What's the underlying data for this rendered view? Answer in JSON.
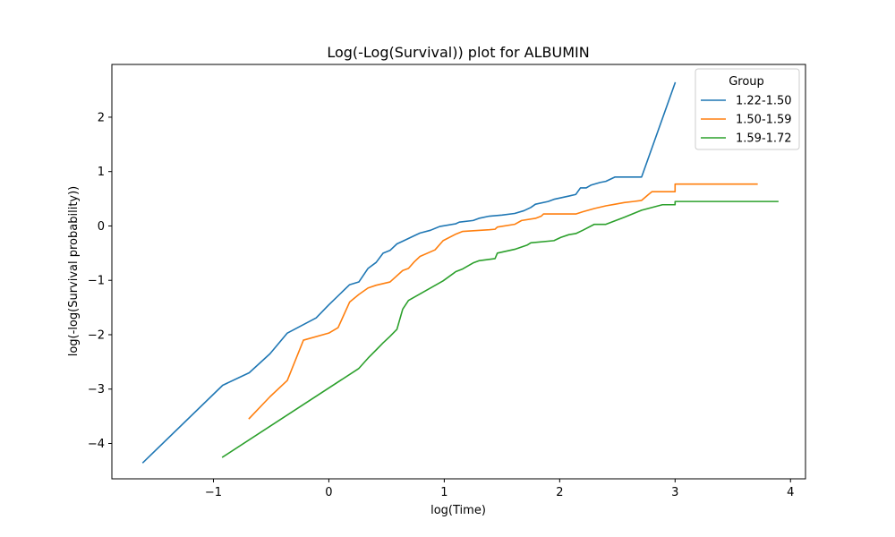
{
  "chart_data": {
    "type": "line",
    "title": "Log(-Log(Survival)) plot for ALBUMIN",
    "xlabel": "log(Time)",
    "ylabel": "log(-log(Survival probability))",
    "xlim": [
      -1.88,
      4.13
    ],
    "ylim": [
      -4.65,
      2.97
    ],
    "xticks": [
      -1,
      0,
      1,
      2,
      3,
      4
    ],
    "yticks": [
      -4,
      -3,
      -2,
      -1,
      0,
      1,
      2
    ],
    "xtick_labels": [
      "−1",
      "0",
      "1",
      "2",
      "3",
      "4"
    ],
    "ytick_labels": [
      "−4",
      "−3",
      "−2",
      "−1",
      "0",
      "1",
      "2"
    ],
    "grid": false,
    "legend": {
      "title": "Group",
      "placement": "upper right"
    },
    "series": [
      {
        "name": "1.22-1.50",
        "color": "#1f77b4",
        "points": [
          [
            -1.61,
            -4.35
          ],
          [
            -0.92,
            -2.93
          ],
          [
            -0.69,
            -2.7
          ],
          [
            -0.51,
            -2.35
          ],
          [
            -0.36,
            -1.97
          ],
          [
            -0.11,
            -1.69
          ],
          [
            0.0,
            -1.45
          ],
          [
            0.18,
            -1.08
          ],
          [
            0.26,
            -1.03
          ],
          [
            0.34,
            -0.78
          ],
          [
            0.41,
            -0.67
          ],
          [
            0.47,
            -0.5
          ],
          [
            0.53,
            -0.45
          ],
          [
            0.59,
            -0.33
          ],
          [
            0.64,
            -0.28
          ],
          [
            0.74,
            -0.18
          ],
          [
            0.79,
            -0.13
          ],
          [
            0.88,
            -0.08
          ],
          [
            0.96,
            -0.01
          ],
          [
            1.1,
            0.04
          ],
          [
            1.13,
            0.07
          ],
          [
            1.25,
            0.1
          ],
          [
            1.3,
            0.14
          ],
          [
            1.39,
            0.18
          ],
          [
            1.5,
            0.2
          ],
          [
            1.61,
            0.23
          ],
          [
            1.69,
            0.28
          ],
          [
            1.75,
            0.34
          ],
          [
            1.79,
            0.4
          ],
          [
            1.9,
            0.45
          ],
          [
            1.95,
            0.49
          ],
          [
            2.08,
            0.55
          ],
          [
            2.14,
            0.58
          ],
          [
            2.18,
            0.7
          ],
          [
            2.23,
            0.7
          ],
          [
            2.27,
            0.75
          ],
          [
            2.35,
            0.8
          ],
          [
            2.4,
            0.82
          ],
          [
            2.48,
            0.9
          ],
          [
            2.71,
            0.9
          ],
          [
            3.0,
            2.63
          ]
        ]
      },
      {
        "name": "1.50-1.59",
        "color": "#ff7f0e",
        "points": [
          [
            -0.69,
            -3.54
          ],
          [
            -0.51,
            -3.14
          ],
          [
            -0.36,
            -2.84
          ],
          [
            -0.22,
            -2.1
          ],
          [
            0.0,
            -1.97
          ],
          [
            0.08,
            -1.87
          ],
          [
            0.18,
            -1.4
          ],
          [
            0.26,
            -1.26
          ],
          [
            0.34,
            -1.14
          ],
          [
            0.41,
            -1.09
          ],
          [
            0.53,
            -1.03
          ],
          [
            0.64,
            -0.82
          ],
          [
            0.69,
            -0.78
          ],
          [
            0.74,
            -0.66
          ],
          [
            0.79,
            -0.56
          ],
          [
            0.92,
            -0.44
          ],
          [
            0.99,
            -0.27
          ],
          [
            1.1,
            -0.15
          ],
          [
            1.16,
            -0.1
          ],
          [
            1.39,
            -0.07
          ],
          [
            1.44,
            -0.06
          ],
          [
            1.46,
            -0.02
          ],
          [
            1.61,
            0.03
          ],
          [
            1.67,
            0.1
          ],
          [
            1.79,
            0.14
          ],
          [
            1.84,
            0.18
          ],
          [
            1.86,
            0.22
          ],
          [
            2.14,
            0.22
          ],
          [
            2.2,
            0.26
          ],
          [
            2.3,
            0.32
          ],
          [
            2.4,
            0.37
          ],
          [
            2.48,
            0.4
          ],
          [
            2.56,
            0.43
          ],
          [
            2.64,
            0.45
          ],
          [
            2.71,
            0.47
          ],
          [
            2.77,
            0.58
          ],
          [
            2.8,
            0.63
          ],
          [
            3.0,
            0.63
          ],
          [
            3.0,
            0.77
          ],
          [
            3.71,
            0.77
          ]
        ]
      },
      {
        "name": "1.59-1.72",
        "color": "#2ca02c",
        "points": [
          [
            -0.92,
            -4.25
          ],
          [
            0.26,
            -2.62
          ],
          [
            0.34,
            -2.43
          ],
          [
            0.41,
            -2.28
          ],
          [
            0.47,
            -2.15
          ],
          [
            0.53,
            -2.03
          ],
          [
            0.59,
            -1.9
          ],
          [
            0.64,
            -1.53
          ],
          [
            0.69,
            -1.37
          ],
          [
            0.99,
            -1.01
          ],
          [
            1.1,
            -0.84
          ],
          [
            1.16,
            -0.79
          ],
          [
            1.25,
            -0.68
          ],
          [
            1.3,
            -0.64
          ],
          [
            1.44,
            -0.6
          ],
          [
            1.46,
            -0.5
          ],
          [
            1.61,
            -0.43
          ],
          [
            1.72,
            -0.35
          ],
          [
            1.75,
            -0.31
          ],
          [
            1.95,
            -0.27
          ],
          [
            2.01,
            -0.21
          ],
          [
            2.08,
            -0.16
          ],
          [
            2.14,
            -0.14
          ],
          [
            2.2,
            -0.08
          ],
          [
            2.3,
            0.03
          ],
          [
            2.4,
            0.03
          ],
          [
            2.56,
            0.16
          ],
          [
            2.71,
            0.29
          ],
          [
            2.89,
            0.39
          ],
          [
            3.0,
            0.39
          ],
          [
            3.0,
            0.45
          ],
          [
            3.89,
            0.45
          ]
        ]
      }
    ]
  }
}
